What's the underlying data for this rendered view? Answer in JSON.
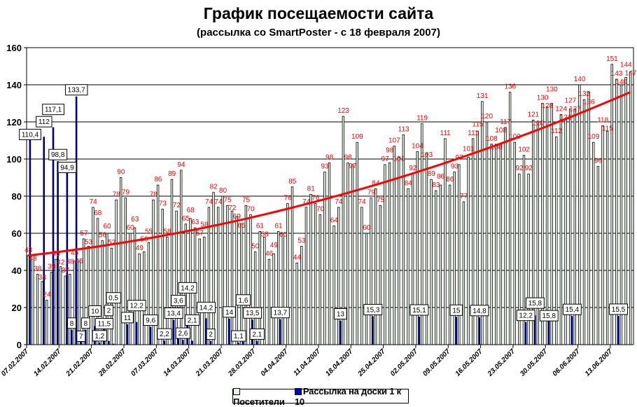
{
  "chart_data": {
    "type": "bar",
    "title": "График посещаемости сайта",
    "subtitle": "(рассылка со SmartPoster - с 18 февраля 2007)",
    "ylim": [
      0,
      160
    ],
    "yticks": [
      0,
      20,
      40,
      60,
      80,
      100,
      120,
      140,
      160
    ],
    "grid": true,
    "legend_placement": "bottom",
    "x_start_date": "07.02.2007",
    "xtick_labels": [
      "07.02.2007",
      "14.02.2007",
      "21.02.2007",
      "28.02.2007",
      "07.03.2007",
      "14.03.2007",
      "21.03.2007",
      "28.03.2007",
      "04.04.2007",
      "11.04.2007",
      "18.04.2007",
      "25.04.2007",
      "02.05.2007",
      "09.05.2007",
      "16.05.2007",
      "23.05.2007",
      "30.05.2007",
      "06.06.2007",
      "13.06.2007"
    ],
    "series": [
      {
        "name": "Посетители",
        "color": "#e6f5e6",
        "label_color": "#ff0000",
        "values": [
          48,
          48,
          38,
          34,
          24,
          39,
          46,
          42,
          37,
          38,
          45,
          45,
          57,
          53,
          74,
          68,
          56,
          60,
          52,
          78,
          90,
          79,
          60,
          63,
          49,
          50,
          55,
          78,
          86,
          73,
          58,
          89,
          72,
          94,
          65,
          68,
          63,
          57,
          58,
          74,
          82,
          74,
          80,
          75,
          72,
          69,
          65,
          75,
          70,
          50,
          61,
          58,
          46,
          49,
          61,
          60,
          76,
          85,
          44,
          53,
          74,
          81,
          76,
          70,
          93,
          98,
          64,
          74,
          123,
          98,
          97,
          109,
          74,
          60,
          79,
          84,
          75,
          97,
          98,
          107,
          101,
          113,
          84,
          92,
          104,
          119,
          103,
          89,
          83,
          86,
          111,
          86,
          93,
          97,
          77,
          101,
          111,
          115,
          131,
          120,
          108,
          108,
          108,
          117,
          136,
          109,
          92,
          102,
          92,
          121,
          120,
          130,
          128,
          130,
          112,
          124,
          121,
          127,
          127,
          140,
          132,
          136,
          109,
          96,
          118,
          115,
          151,
          143,
          140,
          144,
          147
        ]
      },
      {
        "name": "Рассылка на доски 1 к 10",
        "color": "#000080",
        "points": [
          {
            "day": 1,
            "value": 110.4
          },
          {
            "day": 4,
            "value": 112
          },
          {
            "day": 6,
            "value": 117.1
          },
          {
            "day": 7,
            "value": 98.8
          },
          {
            "day": 9,
            "value": 94.9
          },
          {
            "day": 10,
            "value": 8
          },
          {
            "day": 11,
            "value": 133.7
          },
          {
            "day": 12,
            "value": 7
          },
          {
            "day": 13,
            "value": 8
          },
          {
            "day": 15,
            "value": 10
          },
          {
            "day": 16,
            "value": 1.2
          },
          {
            "day": 17,
            "value": 11.5
          },
          {
            "day": 18,
            "value": 2
          },
          {
            "day": 19,
            "value": 0.5
          },
          {
            "day": 22,
            "value": 11
          },
          {
            "day": 24,
            "value": 12.2
          },
          {
            "day": 27,
            "value": 9.6
          },
          {
            "day": 30,
            "value": 2.2
          },
          {
            "day": 32,
            "value": 13.4
          },
          {
            "day": 33,
            "value": 3.6
          },
          {
            "day": 34,
            "value": 2.6
          },
          {
            "day": 35,
            "value": 14.2
          },
          {
            "day": 36,
            "value": 2.1
          },
          {
            "day": 39,
            "value": 14.2
          },
          {
            "day": 40,
            "value": 2
          },
          {
            "day": 44,
            "value": 14
          },
          {
            "day": 46,
            "value": 1.1
          },
          {
            "day": 47,
            "value": 1.6
          },
          {
            "day": 49,
            "value": 13.5
          },
          {
            "day": 50,
            "value": 2.1
          },
          {
            "day": 55,
            "value": 13.7
          },
          {
            "day": 68,
            "value": 13
          },
          {
            "day": 75,
            "value": 15.3
          },
          {
            "day": 85,
            "value": 15.1
          },
          {
            "day": 93,
            "value": 15
          },
          {
            "day": 98,
            "value": 14.8
          },
          {
            "day": 108,
            "value": 12.2
          },
          {
            "day": 110,
            "value": 15.8
          },
          {
            "day": 113,
            "value": 15.8
          },
          {
            "day": 118,
            "value": 15.4
          },
          {
            "day": 128,
            "value": 15.5
          }
        ]
      }
    ],
    "trendline": {
      "type": "polynomial",
      "color": "#ff0000",
      "coefficients": [
        48,
        0.277,
        0.003077
      ]
    }
  }
}
